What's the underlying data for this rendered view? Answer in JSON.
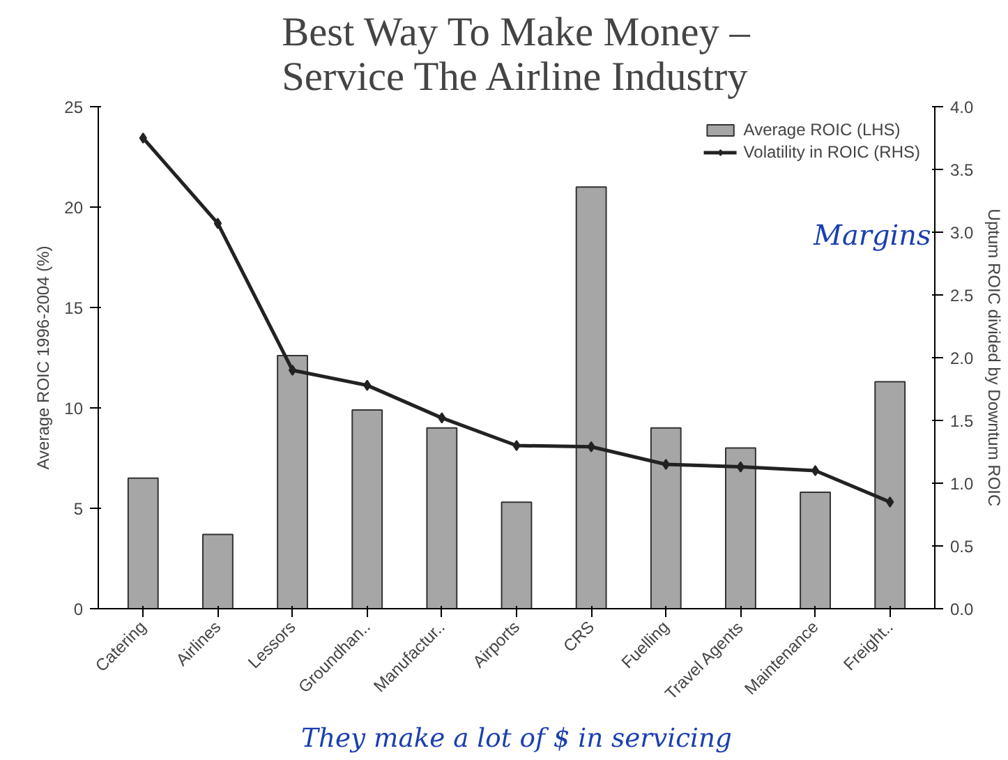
{
  "chart_data": {
    "type": "bar",
    "title": "Best Way To Make Money –\nService The Airline Industry",
    "categories": [
      "Catering",
      "Airlines",
      "Lessors",
      "Groundhan..",
      "Manufactur..",
      "Airports",
      "CRS",
      "Fuelling",
      "Travel Agents",
      "Maintenance",
      "Freight.."
    ],
    "series": [
      {
        "name": "Average ROIC (LHS)",
        "color": "#a6a6a6",
        "values": [
          6.5,
          3.7,
          12.6,
          9.9,
          9.0,
          5.3,
          21.0,
          9.0,
          8.0,
          5.8,
          11.3
        ]
      },
      {
        "name": "Volatility in ROIC (RHS)",
        "type": "line",
        "axis": "y2",
        "color": "#222222",
        "marker": "diamond",
        "values": [
          3.75,
          3.07,
          1.9,
          1.78,
          1.52,
          1.3,
          1.29,
          1.15,
          1.13,
          1.1,
          0.85
        ]
      }
    ],
    "ylabel": "Average ROIC 1996-2004 (%)",
    "y2label": "Uptum ROIC divided by Downtum ROIC",
    "ylim": [
      0,
      25
    ],
    "yticks": [
      0,
      5,
      10,
      15,
      20,
      25
    ],
    "y2lim": [
      0,
      4
    ],
    "y2ticks": [
      {
        "value": 0,
        "label": "0.0"
      },
      {
        "value": 0.5,
        "label": "0.5"
      },
      {
        "value": 1,
        "label": "1.0"
      },
      {
        "value": 1.5,
        "label": "1.5"
      },
      {
        "value": 2,
        "label": "2.0"
      },
      {
        "value": 2.5,
        "label": "2.5"
      },
      {
        "value": 3,
        "label": "3.0"
      },
      {
        "value": 3.5,
        "label": "3.5"
      },
      {
        "value": 4,
        "label": "4.0"
      }
    ],
    "grid": false,
    "legend": "top right",
    "annotations": [
      "Margins",
      "They make a lot of $ in servicing"
    ]
  }
}
